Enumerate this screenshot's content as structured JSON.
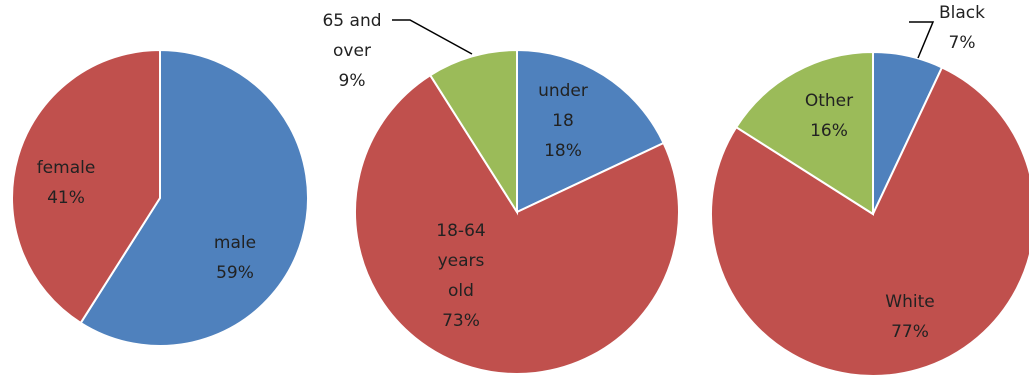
{
  "colors": {
    "blue": "#4f81bd",
    "red": "#c0504d",
    "green": "#9bbb59"
  },
  "chart_data": [
    {
      "type": "pie",
      "start_angle_deg": 0,
      "slices": [
        {
          "label": "male",
          "value": 59,
          "value_label": "59%",
          "color": "#4f81bd"
        },
        {
          "label": "female",
          "value": 41,
          "value_label": "41%",
          "color": "#c0504d"
        }
      ]
    },
    {
      "type": "pie",
      "start_angle_deg": 0,
      "slices": [
        {
          "label": "under 18",
          "value": 18,
          "value_label": "18%",
          "color": "#4f81bd"
        },
        {
          "label": "18-64 years old",
          "value": 73,
          "value_label": "73%",
          "color": "#c0504d"
        },
        {
          "label": "65 and over",
          "value": 9,
          "value_label": "9%",
          "color": "#9bbb59"
        }
      ]
    },
    {
      "type": "pie",
      "start_angle_deg": 0,
      "slices": [
        {
          "label": "Black",
          "value": 7,
          "value_label": "7%",
          "color": "#4f81bd"
        },
        {
          "label": "White",
          "value": 77,
          "value_label": "77%",
          "color": "#c0504d"
        },
        {
          "label": "Other",
          "value": 16,
          "value_label": "16%",
          "color": "#9bbb59"
        }
      ]
    }
  ]
}
